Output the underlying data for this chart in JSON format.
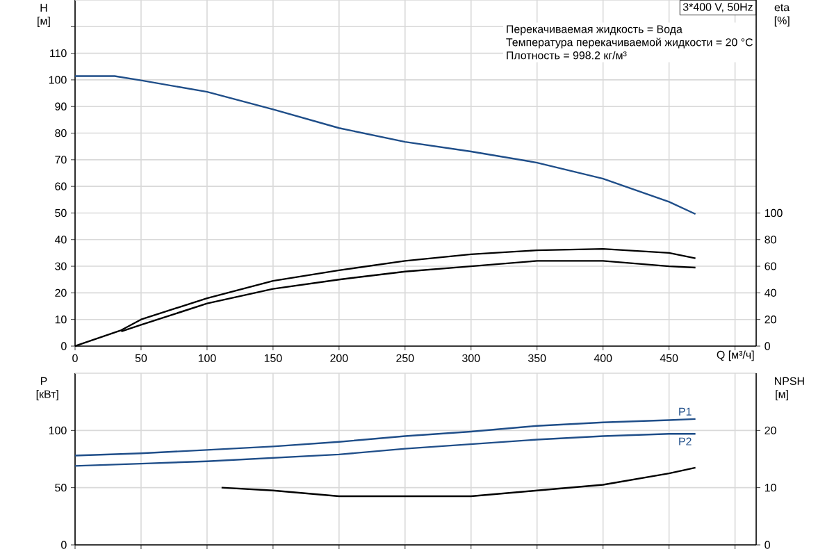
{
  "chart_data": [
    {
      "type": "line",
      "title": "3*400 V, 50Hz",
      "annotations": [
        "Перекачиваемая жидкость = Вода",
        "Температура перекачиваемой жидкости = 20 °C",
        "Плотность = 998.2 кг/м³"
      ],
      "xlabel": "Q [м³/ч]",
      "ylabel": "H [м]",
      "y2label": "eta [%]",
      "xlim": [
        0,
        516
      ],
      "xticks": [
        0,
        50,
        100,
        150,
        200,
        250,
        300,
        350,
        400,
        450,
        {
          "value": 500,
          "label": null
        }
      ],
      "ylim": [
        0,
        130
      ],
      "yticks": [
        0,
        10,
        20,
        30,
        40,
        50,
        60,
        70,
        80,
        90,
        100,
        110,
        {
          "value": 120,
          "label": null
        }
      ],
      "y2lim": [
        0,
        260
      ],
      "y2ticks": [
        0,
        20,
        40,
        60,
        80,
        100
      ],
      "grid": true,
      "line_style": "solid",
      "marker": "none",
      "series": [
        {
          "color": "#1f4e89",
          "axis": "y",
          "x": [
            0,
            30,
            50,
            100,
            150,
            200,
            250,
            300,
            350,
            400,
            450,
            470
          ],
          "values": [
            101.4,
            101.4,
            99.8,
            95.5,
            88.9,
            81.9,
            76.7,
            73.1,
            68.9,
            62.9,
            54.2,
            49.6
          ]
        },
        {
          "color": "#000000",
          "axis": "y2",
          "x": [
            0,
            35,
            50,
            100,
            150,
            200,
            250,
            300,
            350,
            400,
            450,
            470
          ],
          "values": [
            0,
            12,
            20,
            36,
            49,
            57,
            64,
            69,
            72,
            73,
            70,
            66
          ]
        },
        {
          "color": "#000000",
          "axis": "y2",
          "x": [
            35,
            50,
            100,
            150,
            200,
            250,
            300,
            350,
            400,
            450,
            470
          ],
          "values": [
            11,
            16,
            32,
            43,
            50,
            56,
            60,
            64,
            64,
            60,
            59
          ]
        }
      ]
    },
    {
      "type": "line",
      "ylabel": "P [кВт]",
      "y2label": "NPSH [м]",
      "xlim": [
        0,
        516
      ],
      "xticks": [
        0,
        50,
        100,
        150,
        200,
        250,
        300,
        350,
        400,
        450,
        500
      ],
      "ylim": [
        0,
        150
      ],
      "yticks": [
        0,
        50,
        100
      ],
      "y2lim": [
        0,
        30
      ],
      "y2ticks": [
        0,
        10,
        20
      ],
      "grid": true,
      "tick_labels": "y",
      "line_style": "solid",
      "marker": "none",
      "series": [
        {
          "name": "P1",
          "color": "#1f4e89",
          "axis": "y",
          "x": [
            0,
            50,
            100,
            150,
            200,
            250,
            300,
            350,
            400,
            450,
            470
          ],
          "values": [
            78,
            80,
            83,
            86,
            90,
            95,
            99,
            104,
            107,
            109,
            110
          ]
        },
        {
          "name": "P2",
          "color": "#1f4e89",
          "axis": "y",
          "x": [
            0,
            50,
            100,
            150,
            200,
            250,
            300,
            350,
            400,
            450,
            470
          ],
          "values": [
            69,
            71,
            73,
            76,
            79,
            84,
            88,
            92,
            95,
            97,
            97
          ]
        },
        {
          "color": "#000000",
          "axis": "y2",
          "x": [
            111,
            150,
            200,
            250,
            300,
            350,
            400,
            450,
            470
          ],
          "values": [
            10,
            9.5,
            8.5,
            8.5,
            8.5,
            9.5,
            10.5,
            12.5,
            13.5
          ]
        }
      ]
    }
  ]
}
